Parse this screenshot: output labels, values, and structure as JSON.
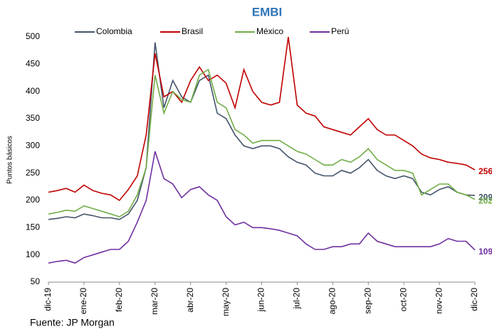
{
  "chart_data": {
    "type": "line",
    "title": "EMBI",
    "y_label": "Puntos básicos",
    "source": "Fuente: JP Morgan",
    "categories": [
      "dic-19",
      null,
      null,
      null,
      "ene-20",
      null,
      null,
      null,
      "feb-20",
      null,
      null,
      null,
      "mar-20",
      null,
      null,
      null,
      "abr-20",
      null,
      null,
      null,
      "may-20",
      null,
      null,
      null,
      "jun-20",
      null,
      null,
      null,
      "jul-20",
      null,
      null,
      null,
      "ago-20",
      null,
      null,
      null,
      "sep-20",
      null,
      null,
      null,
      "oct-20",
      null,
      null,
      null,
      "nov-20",
      null,
      null,
      null,
      "dic-20"
    ],
    "ylim": [
      50,
      500
    ],
    "yticks": [
      50,
      100,
      150,
      200,
      250,
      300,
      350,
      400,
      450,
      500
    ],
    "grid": false,
    "legend": "top",
    "series": [
      {
        "name": "Colombia",
        "color": "#44546a",
        "values": [
          165,
          167,
          170,
          168,
          175,
          172,
          168,
          168,
          165,
          175,
          200,
          260,
          490,
          370,
          420,
          390,
          380,
          420,
          430,
          360,
          350,
          320,
          300,
          295,
          300,
          300,
          295,
          280,
          270,
          265,
          250,
          245,
          245,
          255,
          250,
          260,
          275,
          255,
          245,
          240,
          245,
          240,
          215,
          210,
          220,
          225,
          215,
          210,
          209
        ],
        "value_labels": [
          null,
          null,
          null,
          null,
          null,
          null,
          null,
          null,
          null,
          null,
          null,
          null,
          null,
          null,
          null,
          null,
          null,
          null,
          null,
          null,
          null,
          null,
          null,
          null,
          null,
          null,
          null,
          null,
          null,
          null,
          null,
          null,
          null,
          null,
          null,
          null,
          null,
          null,
          null,
          null,
          null,
          null,
          null,
          null,
          null,
          null,
          null,
          null,
          "209"
        ]
      },
      {
        "name": "Brasil",
        "color": "#c00000",
        "values": [
          215,
          218,
          222,
          215,
          228,
          218,
          213,
          210,
          200,
          220,
          245,
          320,
          470,
          390,
          400,
          380,
          420,
          445,
          420,
          430,
          415,
          370,
          440,
          400,
          380,
          375,
          380,
          500,
          375,
          360,
          355,
          335,
          330,
          325,
          320,
          335,
          350,
          330,
          320,
          320,
          310,
          300,
          285,
          278,
          275,
          270,
          268,
          265,
          256
        ],
        "value_labels": [
          null,
          null,
          null,
          null,
          null,
          null,
          null,
          null,
          null,
          null,
          null,
          null,
          null,
          null,
          null,
          null,
          null,
          null,
          null,
          null,
          null,
          null,
          null,
          null,
          null,
          null,
          null,
          null,
          null,
          null,
          null,
          null,
          null,
          null,
          null,
          null,
          null,
          null,
          null,
          null,
          null,
          null,
          null,
          null,
          null,
          null,
          null,
          null,
          "256"
        ]
      },
      {
        "name": "México",
        "color": "#70ad47",
        "values": [
          175,
          178,
          182,
          180,
          190,
          185,
          180,
          175,
          170,
          180,
          210,
          260,
          430,
          360,
          400,
          385,
          380,
          430,
          440,
          380,
          370,
          330,
          320,
          305,
          310,
          310,
          310,
          300,
          290,
          285,
          275,
          265,
          265,
          275,
          270,
          280,
          295,
          275,
          265,
          255,
          255,
          250,
          210,
          220,
          230,
          230,
          215,
          210,
          202
        ],
        "value_labels": [
          null,
          null,
          null,
          null,
          null,
          null,
          null,
          null,
          null,
          null,
          null,
          null,
          null,
          null,
          null,
          null,
          null,
          null,
          null,
          null,
          null,
          null,
          null,
          null,
          null,
          null,
          null,
          null,
          null,
          null,
          null,
          null,
          null,
          null,
          null,
          null,
          null,
          null,
          null,
          null,
          null,
          null,
          null,
          null,
          null,
          null,
          null,
          null,
          "202"
        ]
      },
      {
        "name": "Perú",
        "color": "#7030a0",
        "values": [
          85,
          88,
          90,
          85,
          95,
          100,
          105,
          110,
          110,
          125,
          160,
          200,
          290,
          240,
          230,
          205,
          220,
          225,
          210,
          200,
          170,
          155,
          160,
          150,
          150,
          148,
          145,
          140,
          135,
          120,
          110,
          110,
          115,
          115,
          120,
          120,
          140,
          125,
          120,
          115,
          115,
          115,
          115,
          115,
          120,
          130,
          125,
          125,
          109
        ],
        "value_labels": [
          null,
          null,
          null,
          null,
          null,
          null,
          null,
          null,
          null,
          null,
          null,
          null,
          null,
          null,
          null,
          null,
          null,
          null,
          null,
          null,
          null,
          null,
          null,
          null,
          null,
          null,
          null,
          null,
          null,
          null,
          null,
          null,
          null,
          null,
          null,
          null,
          null,
          null,
          null,
          null,
          null,
          null,
          null,
          null,
          null,
          null,
          null,
          null,
          "109"
        ]
      }
    ]
  }
}
